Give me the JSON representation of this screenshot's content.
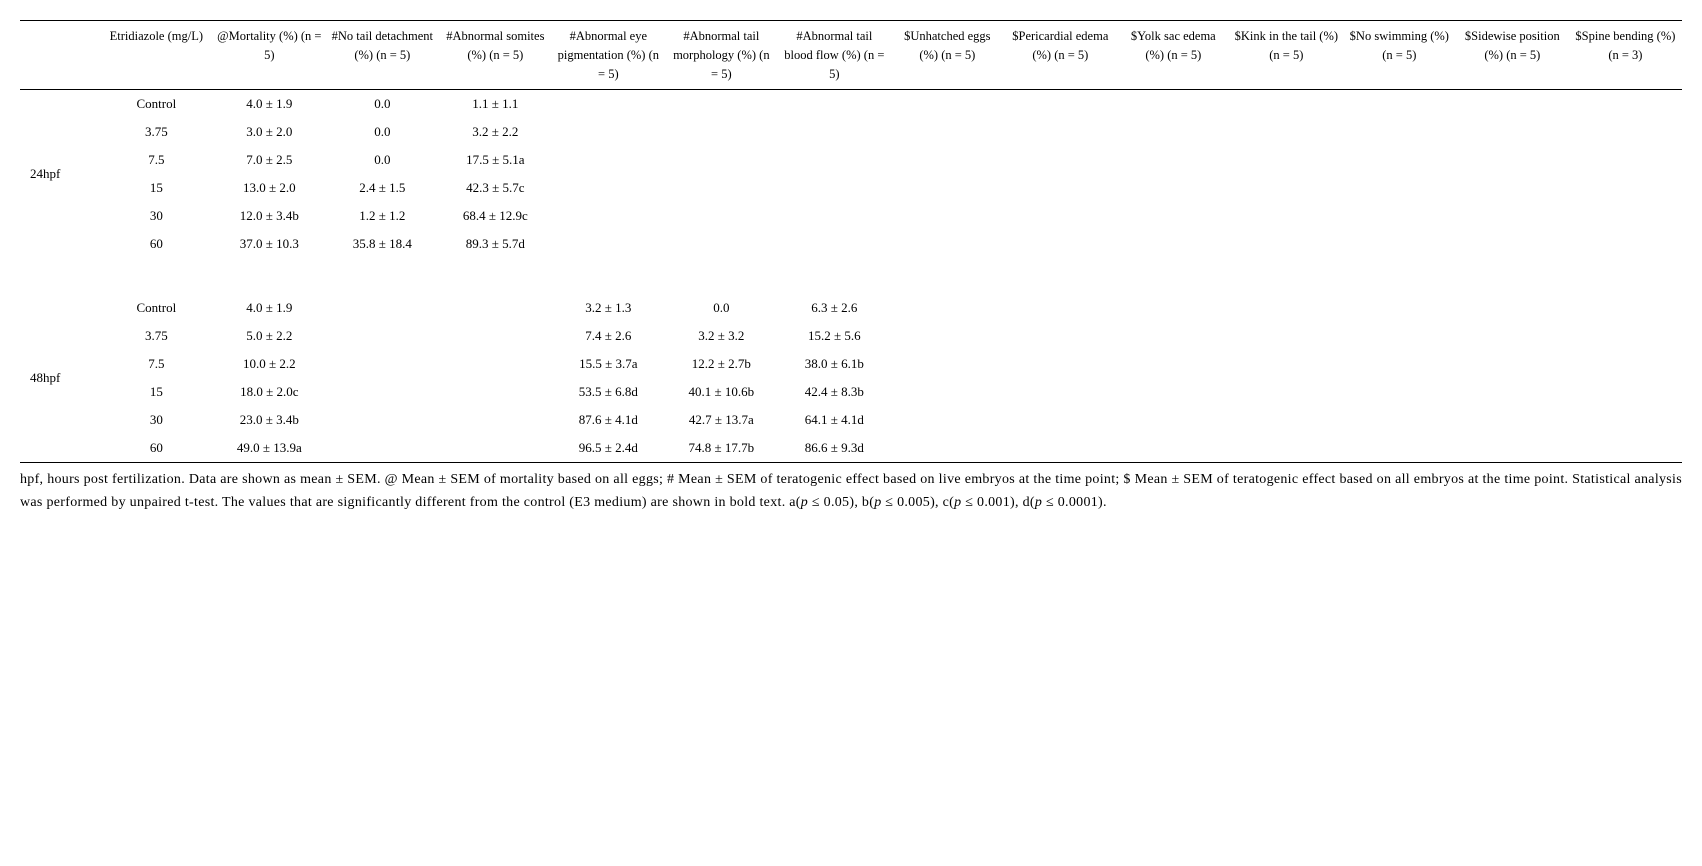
{
  "headers": [
    "",
    "Etridiazole (mg/L)",
    "@Mortality (%) (n = 5)",
    "#No tail detachment (%) (n = 5)",
    "#Abnormal somites (%) (n = 5)",
    "#Abnormal eye pigmentation (%) (n = 5)",
    "#Abnormal tail morphology (%) (n = 5)",
    "#Abnormal tail blood flow (%) (n = 5)",
    "$Unhatched eggs (%) (n = 5)",
    "$Pericardial edema (%) (n = 5)",
    "$Yolk sac edema (%) (n = 5)",
    "$Kink in the tail (%) (n = 5)",
    "$No swimming (%) (n = 5)",
    "$Sidewise position (%) (n = 5)",
    "$Spine bending (%) (n = 3)"
  ],
  "groups": [
    {
      "label": "24hpf",
      "rows": [
        {
          "dose": "Control",
          "c": [
            "4.0 ± 1.9",
            "0.0",
            "1.1 ± 1.1",
            "",
            "",
            "",
            "",
            "",
            "",
            "",
            "",
            "",
            ""
          ]
        },
        {
          "dose": "3.75",
          "c": [
            "3.0 ± 2.0",
            "0.0",
            "3.2 ± 2.2",
            "",
            "",
            "",
            "",
            "",
            "",
            "",
            "",
            "",
            ""
          ]
        },
        {
          "dose": "7.5",
          "c": [
            "7.0 ± 2.5",
            "0.0",
            "17.5 ± 5.1a",
            "",
            "",
            "",
            "",
            "",
            "",
            "",
            "",
            "",
            ""
          ]
        },
        {
          "dose": "15",
          "c": [
            "13.0 ± 2.0",
            "2.4 ± 1.5",
            "42.3 ± 5.7c",
            "",
            "",
            "",
            "",
            "",
            "",
            "",
            "",
            "",
            ""
          ]
        },
        {
          "dose": "30",
          "c": [
            "12.0 ± 3.4b",
            "1.2 ± 1.2",
            "68.4 ± 12.9c",
            "",
            "",
            "",
            "",
            "",
            "",
            "",
            "",
            "",
            ""
          ]
        },
        {
          "dose": "60",
          "c": [
            "37.0 ± 10.3",
            "35.8 ± 18.4",
            "89.3 ± 5.7d",
            "",
            "",
            "",
            "",
            "",
            "",
            "",
            "",
            "",
            ""
          ]
        }
      ]
    },
    {
      "label": "48hpf",
      "rows": [
        {
          "dose": "Control",
          "c": [
            "4.0 ± 1.9",
            "",
            "",
            "3.2 ± 1.3",
            "0.0",
            "6.3 ± 2.6",
            "",
            "",
            "",
            "",
            "",
            "",
            ""
          ]
        },
        {
          "dose": "3.75",
          "c": [
            "5.0 ± 2.2",
            "",
            "",
            "7.4 ± 2.6",
            "3.2 ± 3.2",
            "15.2 ± 5.6",
            "",
            "",
            "",
            "",
            "",
            "",
            ""
          ]
        },
        {
          "dose": "7.5",
          "c": [
            "10.0 ± 2.2",
            "",
            "",
            "15.5 ± 3.7a",
            "12.2 ± 2.7b",
            "38.0 ± 6.1b",
            "",
            "",
            "",
            "",
            "",
            "",
            ""
          ]
        },
        {
          "dose": "15",
          "c": [
            "18.0 ± 2.0c",
            "",
            "",
            "53.5 ± 6.8d",
            "40.1 ± 10.6b",
            "42.4 ± 8.3b",
            "",
            "",
            "",
            "",
            "",
            "",
            ""
          ]
        },
        {
          "dose": "30",
          "c": [
            "23.0 ± 3.4b",
            "",
            "",
            "87.6 ± 4.1d",
            "42.7 ± 13.7a",
            "64.1 ± 4.1d",
            "",
            "",
            "",
            "",
            "",
            "",
            ""
          ]
        },
        {
          "dose": "60",
          "c": [
            "49.0 ± 13.9a",
            "",
            "",
            "96.5 ± 2.4d",
            "74.8 ± 17.7b",
            "86.6 ± 9.3d",
            "",
            "",
            "",
            "",
            "",
            "",
            ""
          ]
        }
      ]
    }
  ],
  "footnote_html": "hpf, hours post fertilization. Data are shown as mean ± SEM. @ Mean ± SEM of mortality based on all eggs; # Mean ± SEM of teratogenic effect based on live embryos at the time point; $ Mean ± SEM of teratogenic effect based on all embryos at the time point. Statistical analysis was performed by unpaired t-test. The values that are significantly different from the control (E3 medium) are shown in bold text. a(<em>p</em> ≤ 0.05), b(<em>p</em> ≤ 0.005), c(<em>p</em> ≤ 0.001), d(<em>p</em> ≤ 0.0001)."
}
